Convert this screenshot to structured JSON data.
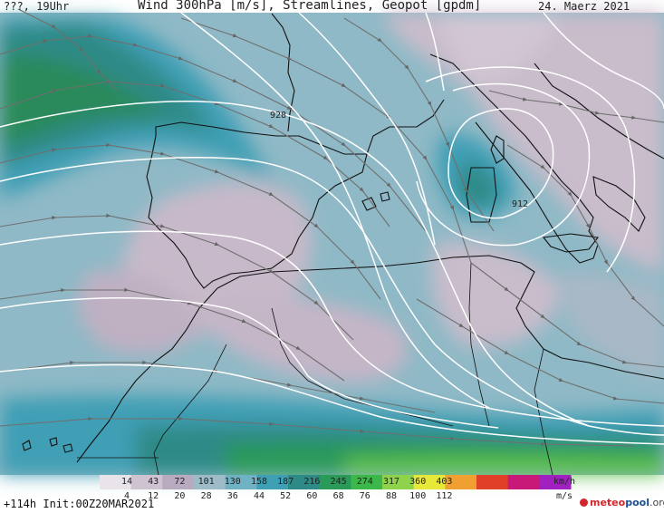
{
  "header": {
    "left": "???, 19Uhr",
    "title": "Wind 300hPa [m/s], Streamlines, Geopot [gpdm]",
    "date": "24. Maerz 2021"
  },
  "footer": {
    "forecast": "+114h",
    "init": "Init:00Z20MAR2021"
  },
  "legend": {
    "kmh_labels": [
      "14",
      "43",
      "72",
      "101",
      "130",
      "158",
      "187",
      "216",
      "245",
      "274",
      "317",
      "360",
      "403"
    ],
    "kmh_unit": "km/h",
    "ms_labels": [
      "4",
      "12",
      "20",
      "28",
      "36",
      "44",
      "52",
      "60",
      "68",
      "76",
      "88",
      "100",
      "112"
    ],
    "ms_unit": "m/s",
    "colors": [
      "#e9e4ea",
      "#cfc3d2",
      "#b9abbf",
      "#9dbcc8",
      "#6fb2c4",
      "#3f9fb5",
      "#2e8a86",
      "#2a9a58",
      "#3cb84a",
      "#8fd24c",
      "#e8e838",
      "#f0a030",
      "#e04028",
      "#c81878",
      "#a020c0"
    ]
  },
  "contours": [
    {
      "label": "928"
    },
    {
      "label": "912"
    }
  ],
  "logo": {
    "meteo": "meteo",
    "pool": "pool",
    "org": ".org"
  },
  "palette": {
    "sea_light": "#9dbcc8",
    "calm": "#c9bccb",
    "jet_green": "#2a9a58"
  }
}
